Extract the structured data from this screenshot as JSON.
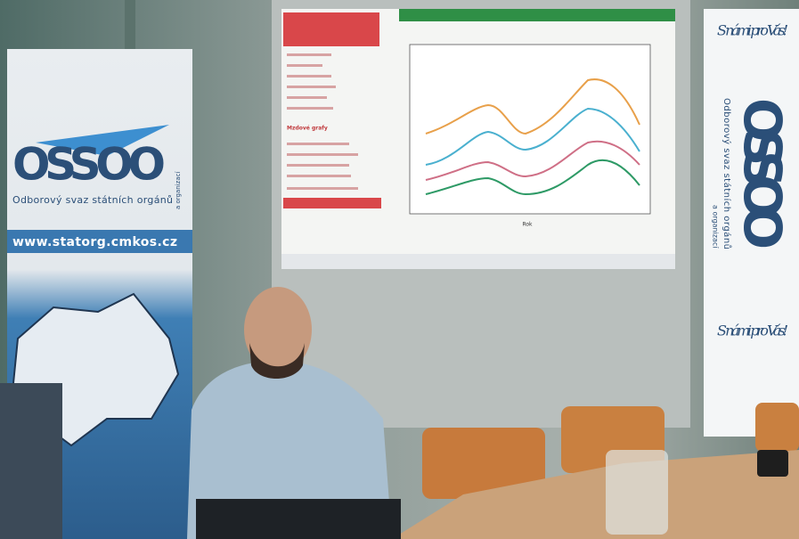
{
  "left_banner": {
    "logo": "OSSOO",
    "subtitle": "Odborový svaz státních orgánů",
    "subtitle_side": "a organizací",
    "url": "www.statorg.cmkos.cz"
  },
  "right_banner": {
    "slogan_top": "S námi pro Vás!",
    "logo": "OSSOO",
    "subtitle": "Odborový svaz státních orgánů",
    "subtitle_side": "a organizací",
    "slogan_bottom": "S námi pro Vás!"
  },
  "screen": {
    "sidebar_heading": "Mzdové grafy",
    "x_axis_label": "Rok"
  }
}
